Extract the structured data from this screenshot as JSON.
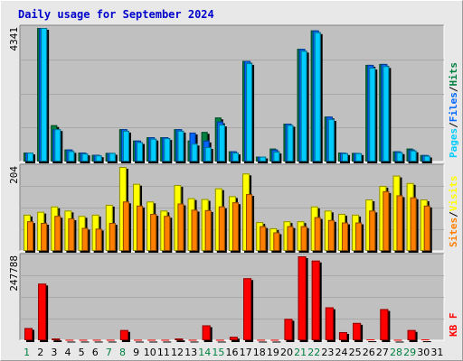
{
  "window": {
    "title": "Daily usage for September 2024"
  },
  "colors": {
    "pages": "#00ccff",
    "files": "#0066ff",
    "hits": "#008040",
    "sites": "#ff8000",
    "visits": "#ffff00",
    "kbytes": "#ff0000",
    "weekend_day": "#008040",
    "weekday": "#000000",
    "title": "#0000cc"
  },
  "chart_data": [
    {
      "type": "bar",
      "name": "hits-files-pages",
      "categories": [
        "1",
        "2",
        "3",
        "4",
        "5",
        "6",
        "7",
        "8",
        "9",
        "10",
        "11",
        "12",
        "13",
        "14",
        "15",
        "16",
        "17",
        "18",
        "19",
        "20",
        "21",
        "22",
        "23",
        "24",
        "25",
        "26",
        "27",
        "28",
        "29",
        "30",
        "31"
      ],
      "weekend_days": [
        "1",
        "7",
        "8",
        "14",
        "15",
        "21",
        "22",
        "28",
        "29"
      ],
      "ymax_label": "4341",
      "ylim": [
        0,
        4341
      ],
      "legend": [
        "Pages",
        "Files",
        "Hits"
      ],
      "legend_sep": "/",
      "series": [
        {
          "name": "Hits",
          "values": [
            290,
            4341,
            1180,
            390,
            290,
            220,
            280,
            1050,
            680,
            790,
            790,
            1050,
            680,
            960,
            1430,
            330,
            3270,
            160,
            420,
            1230,
            3660,
            4260,
            1460,
            290,
            280,
            3140,
            3170,
            330,
            420,
            210,
            0
          ]
        },
        {
          "name": "Files",
          "values": [
            290,
            4341,
            1050,
            390,
            290,
            220,
            280,
            1050,
            680,
            790,
            790,
            1050,
            940,
            680,
            1300,
            330,
            3270,
            160,
            390,
            1230,
            3660,
            4260,
            1460,
            290,
            280,
            3140,
            3170,
            330,
            390,
            210,
            0
          ]
        },
        {
          "name": "Pages",
          "values": [
            290,
            4341,
            1050,
            340,
            260,
            200,
            280,
            1000,
            630,
            740,
            760,
            1000,
            580,
            470,
            1200,
            290,
            3200,
            160,
            320,
            1190,
            3600,
            4200,
            1380,
            270,
            270,
            3050,
            3100,
            300,
            360,
            190,
            0
          ]
        }
      ]
    },
    {
      "type": "bar",
      "name": "visits-sites",
      "ymax_label": "204",
      "ylim": [
        0,
        204
      ],
      "legend": [
        "Sites",
        "Visits"
      ],
      "legend_sep": "/",
      "series": [
        {
          "name": "Visits",
          "values": [
            88,
            95,
            108,
            98,
            85,
            88,
            112,
            204,
            163,
            120,
            98,
            160,
            128,
            126,
            152,
            133,
            188,
            70,
            55,
            72,
            72,
            108,
            98,
            90,
            88,
            125,
            158,
            183,
            165,
            125,
            0
          ]
        },
        {
          "name": "Sites",
          "values": [
            72,
            68,
            85,
            79,
            56,
            54,
            68,
            120,
            110,
            90,
            85,
            115,
            100,
            99,
            108,
            118,
            138,
            60,
            45,
            60,
            60,
            82,
            75,
            69,
            69,
            98,
            145,
            135,
            130,
            110,
            0
          ]
        }
      ]
    },
    {
      "type": "bar",
      "name": "kbytes",
      "ymax_label": "247788",
      "ylim": [
        0,
        247788
      ],
      "legend": [
        "KB F"
      ],
      "series": [
        {
          "name": "KB F",
          "values": [
            36000,
            167000,
            5000,
            1400,
            1400,
            1400,
            1400,
            30000,
            1400,
            1400,
            1400,
            5000,
            1400,
            44000,
            1400,
            10000,
            183000,
            1400,
            1400,
            63000,
            247788,
            235000,
            97000,
            24000,
            51000,
            2500,
            92000,
            1400,
            30000,
            2500,
            0
          ]
        }
      ]
    }
  ]
}
